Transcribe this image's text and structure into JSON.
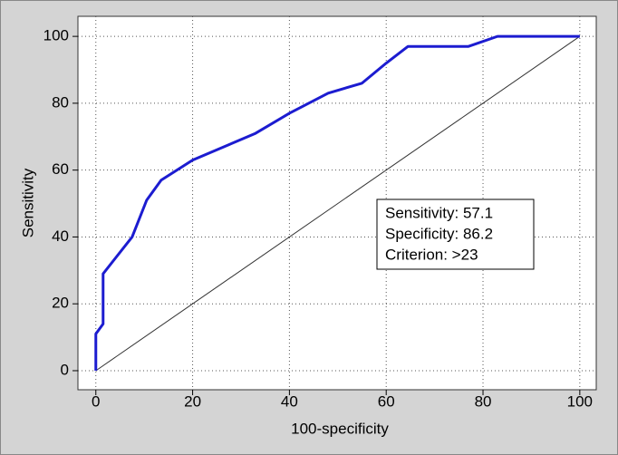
{
  "chart_data": {
    "type": "line",
    "x_label": "100-specificity",
    "y_label": "Sensitivity",
    "x": [
      0,
      0,
      1.5,
      1.5,
      7.5,
      10.5,
      13.5,
      20,
      33,
      40,
      48,
      55,
      60,
      64.5,
      77,
      83,
      100
    ],
    "series": [
      {
        "color": "#1c1cd0",
        "values": [
          0,
          11,
          14,
          29,
          40,
          51,
          57,
          63,
          71,
          77,
          83,
          86,
          92,
          97,
          97,
          100,
          100
        ]
      }
    ],
    "reference_line": {
      "x": [
        0,
        100
      ],
      "y": [
        0,
        100
      ]
    },
    "annotations": [
      "Sensitivity: 57.1",
      "Specificity: 86.2",
      "Criterion: >23"
    ],
    "xlim": [
      -3.7,
      103.4
    ],
    "ylim": [
      -5.7,
      106
    ],
    "xticks": [
      0,
      20,
      40,
      60,
      80,
      100
    ],
    "yticks": [
      0,
      20,
      40,
      60,
      80,
      100
    ],
    "grid": true
  }
}
